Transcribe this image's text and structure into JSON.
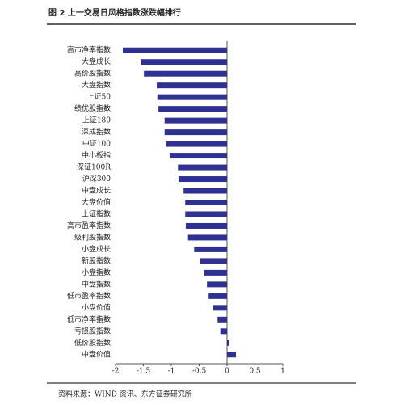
{
  "chart_data": {
    "type": "bar",
    "orientation": "horizontal",
    "title": "图 2 上一交易日风格指数涨跌幅排行",
    "source": "资料来源：WIND 资讯、东方证券研究所",
    "categories": [
      "高市净率指数",
      "大盘成长",
      "高价股指数",
      "大盘指数",
      "上证50",
      "绩优股指数",
      "上证180",
      "深成指数",
      "中证100",
      "中小板指",
      "深证100R",
      "沪深300",
      "中盘成长",
      "大盘价值",
      "上证指数",
      "高市盈率指数",
      "级利股指数",
      "小盘成长",
      "新股指数",
      "小盘指数",
      "中盘指数",
      "低市盈率指数",
      "小盘价值",
      "低市净率指数",
      "亏损股指数",
      "低价股指数",
      "中盘价值"
    ],
    "values": [
      -1.87,
      -1.55,
      -1.49,
      -1.26,
      -1.25,
      -1.23,
      -1.12,
      -1.12,
      -1.09,
      -1.03,
      -0.88,
      -0.87,
      -0.78,
      -0.75,
      -0.75,
      -0.74,
      -0.7,
      -0.59,
      -0.48,
      -0.41,
      -0.36,
      -0.33,
      -0.25,
      -0.17,
      -0.12,
      0.04,
      0.16
    ],
    "color": "#2e3192",
    "xlim": [
      -2,
      1
    ],
    "xticks": [
      -2,
      -1.5,
      -1,
      -0.5,
      0,
      0.5,
      1
    ]
  }
}
